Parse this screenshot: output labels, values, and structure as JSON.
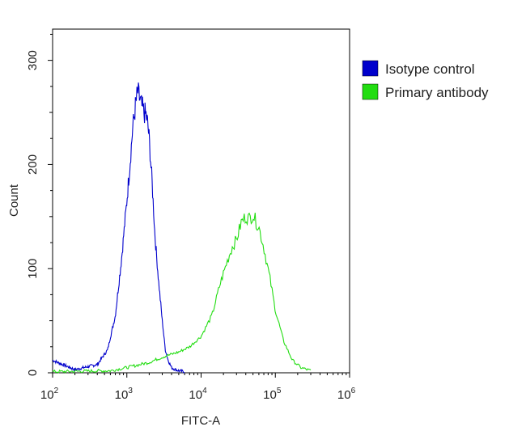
{
  "chart_data": {
    "type": "line",
    "xlabel": "FITC-A",
    "ylabel": "Count",
    "xscale": "log",
    "xlim": [
      100,
      1000000
    ],
    "ylim": [
      0,
      330
    ],
    "x_ticks": [
      {
        "value": 100,
        "base": "10",
        "exp": "2"
      },
      {
        "value": 1000,
        "base": "10",
        "exp": "3"
      },
      {
        "value": 10000,
        "base": "10",
        "exp": "4"
      },
      {
        "value": 100000,
        "base": "10",
        "exp": "5"
      },
      {
        "value": 1000000,
        "base": "10",
        "exp": "6"
      }
    ],
    "y_ticks": [
      0,
      100,
      200,
      300
    ],
    "grid": false,
    "legend_position": "right",
    "series": [
      {
        "name": "Isotype control",
        "color": "#0000cc",
        "x": [
          100,
          200,
          400,
          550,
          700,
          850,
          1000,
          1100,
          1200,
          1300,
          1400,
          1500,
          1600,
          1700,
          1800,
          1900,
          2000,
          2200,
          2400,
          2700,
          3000,
          3300,
          3600,
          4000,
          4500,
          5000,
          6000
        ],
        "y": [
          12,
          3,
          8,
          22,
          55,
          110,
          165,
          200,
          235,
          255,
          270,
          262,
          255,
          250,
          248,
          240,
          225,
          180,
          130,
          85,
          50,
          22,
          12,
          5,
          3,
          2,
          1
        ]
      },
      {
        "name": "Primary antibody",
        "color": "#22dd11",
        "x": [
          100,
          600,
          1000,
          2000,
          3000,
          5000,
          7000,
          10000,
          14000,
          18000,
          22000,
          26000,
          30000,
          35000,
          40000,
          45000,
          50000,
          55000,
          60000,
          70000,
          85000,
          100000,
          130000,
          170000,
          220000,
          300000
        ],
        "y": [
          1,
          2,
          5,
          10,
          15,
          20,
          25,
          35,
          55,
          85,
          105,
          120,
          128,
          145,
          150,
          148,
          152,
          145,
          140,
          120,
          90,
          60,
          30,
          12,
          5,
          2
        ]
      }
    ]
  }
}
